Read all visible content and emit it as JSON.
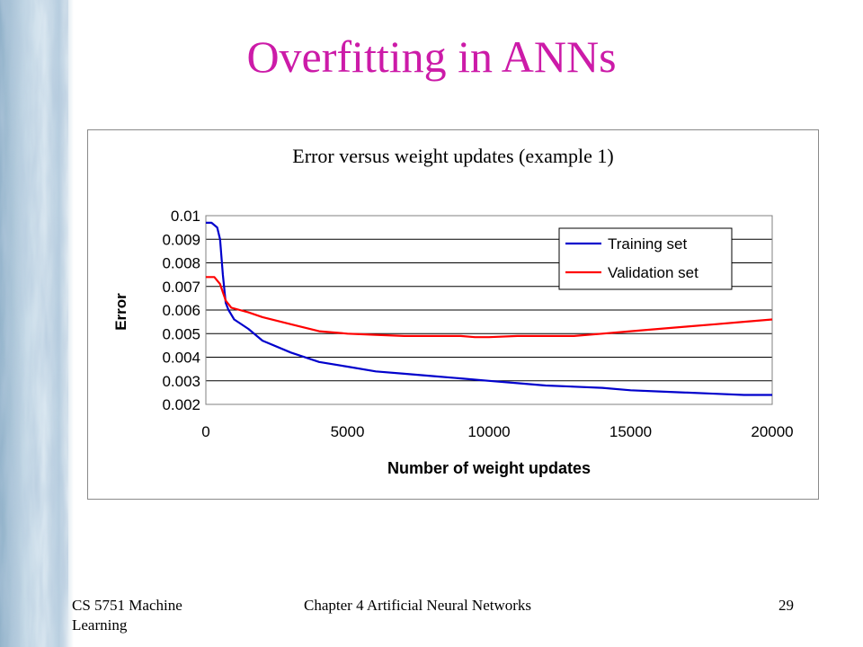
{
  "slide": {
    "title": "Overfitting in ANNs",
    "title_color": "#CC1BA8",
    "footer_left": "CS 5751 Machine Learning",
    "footer_center": "Chapter 4  Artificial Neural Networks",
    "footer_right": "29",
    "sidebar": "blue-white textured stripe"
  },
  "chart_data": {
    "type": "line",
    "title": "Error versus weight updates (example 1)",
    "xlabel": "Number of weight updates",
    "ylabel": "Error",
    "xlim": [
      0,
      20000
    ],
    "ylim": [
      0.002,
      0.01
    ],
    "xticks": [
      "0",
      "5000",
      "10000",
      "15000",
      "20000"
    ],
    "yticks": [
      "0.01",
      "0.009",
      "0.008",
      "0.007",
      "0.006",
      "0.005",
      "0.004",
      "0.003",
      "0.002"
    ],
    "grid": "horizontal major gridlines",
    "legend_position": "top-right",
    "series": [
      {
        "name": "Training set",
        "color": "#0000CC",
        "x": [
          0,
          200,
          400,
          500,
          600,
          700,
          800,
          1000,
          1500,
          2000,
          3000,
          4000,
          5000,
          6000,
          7000,
          8000,
          9000,
          10000,
          11000,
          12000,
          13000,
          14000,
          15000,
          16000,
          17000,
          18000,
          19000,
          20000
        ],
        "values": [
          0.0097,
          0.0097,
          0.0095,
          0.009,
          0.0075,
          0.0063,
          0.006,
          0.0056,
          0.0052,
          0.0047,
          0.0042,
          0.0038,
          0.0036,
          0.0034,
          0.0033,
          0.0032,
          0.0031,
          0.003,
          0.0029,
          0.0028,
          0.00275,
          0.0027,
          0.0026,
          0.00255,
          0.0025,
          0.00245,
          0.0024,
          0.0024
        ]
      },
      {
        "name": "Validation set",
        "color": "#FF0000",
        "x": [
          0,
          300,
          500,
          700,
          900,
          1200,
          1500,
          2000,
          3000,
          4000,
          5000,
          6000,
          7000,
          8000,
          9000,
          9500,
          10000,
          11000,
          12000,
          13000,
          14000,
          15000,
          16000,
          17000,
          18000,
          19000,
          20000
        ],
        "values": [
          0.0074,
          0.0074,
          0.0071,
          0.0064,
          0.0061,
          0.006,
          0.0059,
          0.0057,
          0.0054,
          0.0051,
          0.005,
          0.00495,
          0.0049,
          0.0049,
          0.0049,
          0.00485,
          0.00485,
          0.0049,
          0.0049,
          0.0049,
          0.005,
          0.0051,
          0.0052,
          0.0053,
          0.0054,
          0.0055,
          0.0056
        ]
      }
    ]
  }
}
